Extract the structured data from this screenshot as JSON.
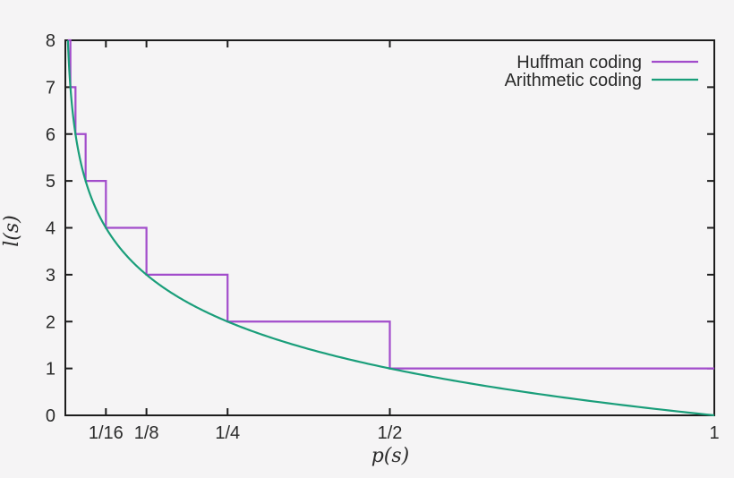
{
  "figure": {
    "background_color": "#f5f4f5",
    "frame_color": "#1d1d1d",
    "text_color": "#2b2b2b"
  },
  "legend": {
    "position": "top-right-inside",
    "items": [
      {
        "label": "Huffman coding",
        "color": "#a24ccb"
      },
      {
        "label": "Arithmetic coding",
        "color": "#1a9e7a"
      }
    ]
  },
  "chart_data": {
    "type": "line",
    "title": "",
    "xlabel": "p(s)",
    "ylabel": "l(s)",
    "xlim": [
      0,
      1
    ],
    "ylim": [
      0,
      8
    ],
    "x_scale": "linear",
    "grid": false,
    "legend_position": "top-right inside plot",
    "x_ticks": [
      {
        "label": "1/16",
        "value": 0.0625
      },
      {
        "label": "1/8",
        "value": 0.125
      },
      {
        "label": "1/4",
        "value": 0.25
      },
      {
        "label": "1/2",
        "value": 0.5
      },
      {
        "label": "1",
        "value": 1
      }
    ],
    "y_ticks": [
      {
        "label": "0",
        "value": 0
      },
      {
        "label": "1",
        "value": 1
      },
      {
        "label": "2",
        "value": 2
      },
      {
        "label": "3",
        "value": 3
      },
      {
        "label": "4",
        "value": 4
      },
      {
        "label": "5",
        "value": 5
      },
      {
        "label": "6",
        "value": 6
      },
      {
        "label": "7",
        "value": 7
      },
      {
        "label": "8",
        "value": 8
      }
    ],
    "series": [
      {
        "name": "Huffman coding",
        "color": "#a24ccb",
        "type": "step",
        "description": "code length l = ceil(-log2 p), staircase with drops at powers of 1/2",
        "points": [
          [
            0.00390625,
            8
          ],
          [
            0.0078125,
            8
          ],
          [
            0.0078125,
            7
          ],
          [
            0.015625,
            7
          ],
          [
            0.015625,
            6
          ],
          [
            0.03125,
            6
          ],
          [
            0.03125,
            5
          ],
          [
            0.0625,
            5
          ],
          [
            0.0625,
            4
          ],
          [
            0.125,
            4
          ],
          [
            0.125,
            3
          ],
          [
            0.25,
            3
          ],
          [
            0.25,
            2
          ],
          [
            0.5,
            2
          ],
          [
            0.5,
            1
          ],
          [
            1,
            1
          ]
        ]
      },
      {
        "name": "Arithmetic coding",
        "color": "#1a9e7a",
        "type": "curve",
        "formula": "l(p) = -log2(p)",
        "points": [
          [
            0.003906,
            8
          ],
          [
            0.004645,
            7.75
          ],
          [
            0.005524,
            7.5
          ],
          [
            0.00657,
            7.25
          ],
          [
            0.007813,
            7
          ],
          [
            0.00929,
            6.75
          ],
          [
            0.011049,
            6.5
          ],
          [
            0.013139,
            6.25
          ],
          [
            0.015625,
            6
          ],
          [
            0.018581,
            5.75
          ],
          [
            0.022097,
            5.5
          ],
          [
            0.026278,
            5.25
          ],
          [
            0.03125,
            5
          ],
          [
            0.037163,
            4.75
          ],
          [
            0.044194,
            4.5
          ],
          [
            0.052556,
            4.25
          ],
          [
            0.0625,
            4
          ],
          [
            0.074325,
            3.75
          ],
          [
            0.088388,
            3.5
          ],
          [
            0.105112,
            3.25
          ],
          [
            0.125,
            3
          ],
          [
            0.148651,
            2.75
          ],
          [
            0.176777,
            2.5
          ],
          [
            0.210224,
            2.25
          ],
          [
            0.25,
            2
          ],
          [
            0.297302,
            1.75
          ],
          [
            0.353553,
            1.5
          ],
          [
            0.420448,
            1.25
          ],
          [
            0.5,
            1
          ],
          [
            0.594604,
            0.75
          ],
          [
            0.707107,
            0.5
          ],
          [
            0.840896,
            0.25
          ],
          [
            1,
            0
          ]
        ]
      }
    ]
  }
}
